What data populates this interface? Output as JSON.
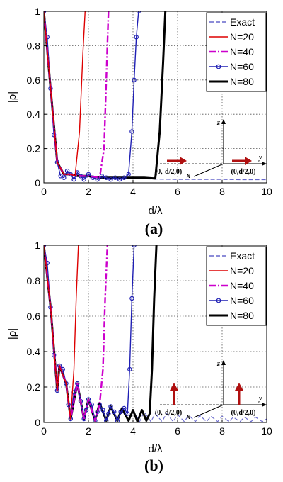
{
  "chart_data": [
    {
      "type": "line",
      "sublabel": "(a)",
      "xlabel": "d/λ",
      "ylabel": "|ρ|",
      "xlim": [
        0,
        10
      ],
      "ylim": [
        0,
        1
      ],
      "xticks": [
        "0",
        "2",
        "4",
        "6",
        "8",
        "10"
      ],
      "yticks": [
        "0",
        "0.2",
        "0.4",
        "0.6",
        "0.8",
        "1"
      ],
      "grid": true,
      "legend_position": "top-right",
      "inset": {
        "left_point": "(0,-d/2,0)",
        "right_point": "(0,d/2,0)",
        "axis_x": "x",
        "axis_y": "y",
        "axis_z": "z",
        "dipole_orientation": "along y (horizontal arrows)"
      },
      "series": [
        {
          "name": "Exact",
          "color": "#6666cc",
          "style": "dashed",
          "x": [
            0,
            0.3,
            0.6,
            0.9,
            1.2,
            1.5,
            2,
            2.5,
            3,
            3.5,
            4,
            5,
            6,
            7,
            8,
            9,
            10
          ],
          "y": [
            1,
            0.55,
            0.12,
            0.05,
            0.05,
            0.04,
            0.03,
            0.03,
            0.03,
            0.025,
            0.025,
            0.022,
            0.02,
            0.02,
            0.02,
            0.018,
            0.018
          ]
        },
        {
          "name": "N=20",
          "color": "#dd0000",
          "style": "solid",
          "x": [
            0,
            0.3,
            0.6,
            0.9,
            1.2,
            1.4,
            1.6,
            1.75,
            1.85
          ],
          "y": [
            1,
            0.55,
            0.12,
            0.05,
            0.05,
            0.04,
            0.3,
            0.75,
            1
          ]
        },
        {
          "name": "N=40",
          "color": "#cc00cc",
          "style": "dashdot",
          "x": [
            0,
            0.3,
            0.6,
            0.9,
            1.2,
            1.5,
            2,
            2.5,
            2.7,
            2.8,
            2.9
          ],
          "y": [
            1,
            0.55,
            0.12,
            0.05,
            0.05,
            0.04,
            0.04,
            0.03,
            0.2,
            0.6,
            1
          ]
        },
        {
          "name": "N=60",
          "color": "#1f1fb4",
          "style": "solid-circles",
          "x": [
            0,
            0.15,
            0.3,
            0.45,
            0.6,
            0.75,
            0.9,
            1.05,
            1.2,
            1.35,
            1.5,
            1.65,
            1.8,
            2,
            2.2,
            2.4,
            2.6,
            2.8,
            3,
            3.2,
            3.4,
            3.6,
            3.8,
            3.95,
            4.05,
            4.15,
            4.25
          ],
          "y": [
            1,
            0.85,
            0.55,
            0.28,
            0.12,
            0.04,
            0.03,
            0.07,
            0.05,
            0.02,
            0.06,
            0.04,
            0.02,
            0.05,
            0.03,
            0.02,
            0.04,
            0.03,
            0.02,
            0.03,
            0.02,
            0.03,
            0.05,
            0.3,
            0.6,
            0.85,
            1
          ]
        },
        {
          "name": "N=80",
          "color": "#000000",
          "style": "thick-solid",
          "x": [
            0,
            0.3,
            0.6,
            0.9,
            1.2,
            1.5,
            2,
            2.5,
            3,
            3.5,
            4,
            4.5,
            5,
            5.2,
            5.35,
            5.45
          ],
          "y": [
            1,
            0.55,
            0.12,
            0.05,
            0.05,
            0.04,
            0.04,
            0.03,
            0.03,
            0.03,
            0.03,
            0.03,
            0.025,
            0.3,
            0.7,
            1
          ]
        }
      ]
    },
    {
      "type": "line",
      "sublabel": "(b)",
      "xlabel": "d/λ",
      "ylabel": "|ρ|",
      "xlim": [
        0,
        10
      ],
      "ylim": [
        0,
        1
      ],
      "xticks": [
        "0",
        "2",
        "4",
        "6",
        "8",
        "10"
      ],
      "yticks": [
        "0",
        "0.2",
        "0.4",
        "0.6",
        "0.8",
        "1"
      ],
      "grid": true,
      "legend_position": "top-right",
      "inset": {
        "left_point": "(0,-d/2,0)",
        "right_point": "(0,d/2,0)",
        "axis_x": "x",
        "axis_y": "y",
        "axis_z": "z",
        "dipole_orientation": "along z (vertical arrows)"
      },
      "series": [
        {
          "name": "Exact",
          "color": "#6666cc",
          "style": "dashed",
          "x": [
            0,
            0.3,
            0.6,
            0.7,
            1,
            1.2,
            1.5,
            1.8,
            2,
            2.3,
            2.5,
            2.8,
            3,
            3.3,
            3.5,
            3.8,
            4,
            4.3,
            4.5,
            4.8,
            5,
            5.3,
            5.5,
            5.8,
            6,
            6.3,
            6.5,
            6.8,
            7,
            7.3,
            7.5,
            7.8,
            8,
            8.3,
            8.5,
            8.8,
            9,
            9.3,
            9.5,
            9.8,
            10
          ],
          "y": [
            1,
            0.65,
            0.18,
            0.32,
            0.22,
            0.02,
            0.22,
            0.02,
            0.13,
            0.01,
            0.11,
            0.01,
            0.09,
            0.01,
            0.08,
            0.01,
            0.07,
            0.005,
            0.06,
            0.005,
            0.05,
            0.005,
            0.05,
            0.005,
            0.045,
            0.005,
            0.04,
            0.005,
            0.04,
            0.005,
            0.035,
            0.005,
            0.035,
            0.005,
            0.03,
            0.005,
            0.03,
            0.005,
            0.03,
            0.005,
            0.02
          ]
        },
        {
          "name": "N=20",
          "color": "#dd0000",
          "style": "solid",
          "x": [
            0,
            0.3,
            0.6,
            0.7,
            1,
            1.2,
            1.35,
            1.45,
            1.55
          ],
          "y": [
            1,
            0.65,
            0.18,
            0.32,
            0.22,
            0.02,
            0.3,
            0.7,
            1
          ]
        },
        {
          "name": "N=40",
          "color": "#cc00cc",
          "style": "dashdot",
          "x": [
            0,
            0.3,
            0.6,
            0.7,
            1,
            1.2,
            1.5,
            1.8,
            2,
            2.3,
            2.5,
            2.65,
            2.75,
            2.85
          ],
          "y": [
            1,
            0.65,
            0.18,
            0.32,
            0.22,
            0.02,
            0.22,
            0.02,
            0.13,
            0.01,
            0.1,
            0.3,
            0.7,
            1
          ]
        },
        {
          "name": "N=60",
          "color": "#1f1fb4",
          "style": "solid-circles",
          "x": [
            0,
            0.15,
            0.3,
            0.45,
            0.6,
            0.7,
            0.85,
            1,
            1.1,
            1.2,
            1.35,
            1.5,
            1.65,
            1.8,
            1.9,
            2,
            2.15,
            2.3,
            2.4,
            2.5,
            2.65,
            2.8,
            2.9,
            3,
            3.15,
            3.3,
            3.45,
            3.6,
            3.75,
            3.85,
            3.95,
            4.05
          ],
          "y": [
            1,
            0.9,
            0.65,
            0.38,
            0.18,
            0.32,
            0.3,
            0.22,
            0.1,
            0.02,
            0.17,
            0.22,
            0.12,
            0.02,
            0.07,
            0.13,
            0.1,
            0.01,
            0.06,
            0.1,
            0.07,
            0.01,
            0.05,
            0.09,
            0.06,
            0.01,
            0.06,
            0.08,
            0.05,
            0.3,
            0.7,
            1
          ]
        },
        {
          "name": "N=80",
          "color": "#000000",
          "style": "thick-solid",
          "x": [
            0,
            0.3,
            0.6,
            0.7,
            1,
            1.2,
            1.5,
            1.8,
            2,
            2.3,
            2.5,
            2.8,
            3,
            3.3,
            3.5,
            3.8,
            4,
            4.2,
            4.4,
            4.6,
            4.75,
            4.85,
            4.95,
            5.05
          ],
          "y": [
            1,
            0.65,
            0.18,
            0.32,
            0.22,
            0.02,
            0.22,
            0.02,
            0.13,
            0.01,
            0.11,
            0.01,
            0.09,
            0.01,
            0.08,
            0.01,
            0.07,
            0.005,
            0.07,
            0.01,
            0.05,
            0.3,
            0.7,
            1
          ]
        }
      ]
    }
  ]
}
